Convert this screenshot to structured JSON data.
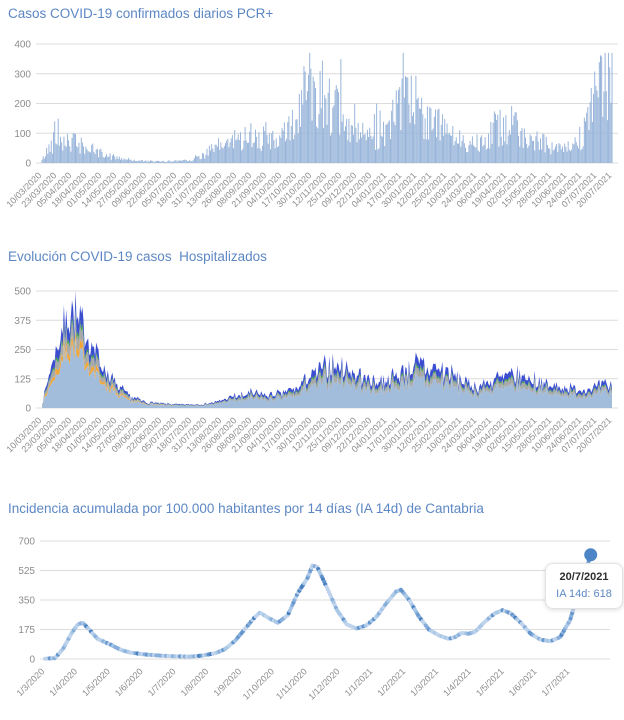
{
  "page": {
    "background": "#ffffff"
  },
  "styles": {
    "title_color": "#5c87c4",
    "axis_label_color": "#8c8c8c",
    "gridline_color": "#dcdcdc"
  },
  "tooltip": {
    "date": "20/7/2021",
    "label": "IA 14d: 618"
  },
  "chart_data": [
    {
      "type": "bar",
      "title": "Casos COVID-19 confirmados diarios PCR+",
      "xlabel": "",
      "ylabel": "",
      "ylim": [
        0,
        400
      ],
      "yticks": [
        0,
        100,
        200,
        300,
        400
      ],
      "grid": "horizontal",
      "legend": "none",
      "bar_color": "#94b2d8",
      "categories": [
        "10/03/2020",
        "23/03/2020",
        "05/04/2020",
        "18/04/2020",
        "01/05/2020",
        "14/05/2020",
        "27/05/2020",
        "09/06/2020",
        "22/06/2020",
        "05/07/2020",
        "18/07/2020",
        "31/07/2020",
        "13/08/2020",
        "26/08/2020",
        "08/09/2020",
        "21/09/2020",
        "04/10/2020",
        "17/10/2020",
        "30/10/2020",
        "12/11/2020",
        "25/11/2020",
        "09/12/2020",
        "22/12/2020",
        "04/01/2021",
        "17/01/2021",
        "30/01/2021",
        "12/02/2021",
        "25/02/2021",
        "10/03/2021",
        "24/03/2021",
        "06/04/2021",
        "19/04/2021",
        "02/05/2021",
        "15/05/2021",
        "28/05/2021",
        "10/06/2021",
        "24/06/2021",
        "07/07/2021",
        "20/07/2021"
      ],
      "values_at_ticks": [
        10,
        95,
        70,
        50,
        30,
        18,
        10,
        6,
        5,
        8,
        12,
        35,
        60,
        80,
        95,
        75,
        80,
        150,
        280,
        220,
        140,
        95,
        75,
        120,
        185,
        205,
        145,
        95,
        75,
        70,
        110,
        135,
        100,
        75,
        55,
        45,
        75,
        240,
        310
      ],
      "max_spike_value": 370,
      "days_per_tick": 13
    },
    {
      "type": "area",
      "title": "Evolución COVID-19 casos  Hospitalizados",
      "xlabel": "",
      "ylabel": "",
      "ylim": [
        0,
        500
      ],
      "yticks": [
        0,
        125,
        250,
        375,
        500
      ],
      "grid": "horizontal",
      "legend": "none",
      "stacked": true,
      "categories": [
        "10/03/2020",
        "23/03/2020",
        "05/04/2020",
        "18/04/2020",
        "01/05/2020",
        "14/05/2020",
        "27/05/2020",
        "09/06/2020",
        "22/06/2020",
        "05/07/2020",
        "18/07/2020",
        "31/07/2020",
        "13/08/2020",
        "26/08/2020",
        "08/09/2020",
        "21/09/2020",
        "04/10/2020",
        "17/10/2020",
        "30/10/2020",
        "12/11/2020",
        "25/11/2020",
        "09/12/2020",
        "22/12/2020",
        "04/01/2021",
        "17/01/2021",
        "30/01/2021",
        "12/02/2021",
        "25/02/2021",
        "10/03/2021",
        "24/03/2021",
        "06/04/2021",
        "19/04/2021",
        "02/05/2021",
        "15/05/2021",
        "28/05/2021",
        "10/06/2021",
        "24/06/2021",
        "07/07/2021",
        "20/07/2021"
      ],
      "series": [
        {
          "name": "light-blue-area",
          "color": "#a2bddc",
          "values_at_ticks": [
            9,
            168,
            237,
            180,
            108,
            54,
            27,
            15,
            11,
            9,
            9,
            11,
            21,
            33,
            39,
            36,
            39,
            54,
            90,
            120,
            111,
            90,
            72,
            78,
            99,
            117,
            111,
            96,
            72,
            57,
            72,
            90,
            87,
            72,
            60,
            54,
            51,
            57,
            63
          ]
        },
        {
          "name": "orange-area",
          "color": "#f2a637",
          "values_at_ticks": [
            1,
            22,
            32,
            24,
            14,
            7,
            3,
            1,
            1,
            0,
            0,
            0,
            0,
            0,
            0,
            0,
            0,
            0,
            0,
            0,
            0,
            0,
            0,
            0,
            0,
            0,
            0,
            0,
            0,
            0,
            0,
            0,
            0,
            0,
            0,
            0,
            0,
            0,
            0
          ]
        },
        {
          "name": "gray-area",
          "color": "#a9a9a9",
          "values_at_ticks": [
            2,
            39,
            55,
            42,
            25,
            13,
            6,
            4,
            3,
            2,
            2,
            3,
            5,
            8,
            9,
            8,
            9,
            13,
            21,
            28,
            26,
            21,
            17,
            18,
            23,
            27,
            26,
            22,
            17,
            13,
            17,
            21,
            20,
            17,
            14,
            13,
            12,
            13,
            15
          ]
        },
        {
          "name": "green-area",
          "color": "#3aa23a",
          "values_at_ticks": [
            1,
            11,
            16,
            12,
            7,
            4,
            2,
            1,
            1,
            1,
            1,
            1,
            1,
            2,
            3,
            2,
            3,
            4,
            6,
            8,
            7,
            6,
            5,
            5,
            7,
            8,
            7,
            6,
            5,
            4,
            5,
            6,
            6,
            5,
            4,
            4,
            3,
            4,
            4
          ]
        },
        {
          "name": "blue-area",
          "color": "#3b4ed0",
          "values_at_ticks": [
            2,
            45,
            63,
            48,
            29,
            14,
            7,
            4,
            3,
            3,
            3,
            3,
            6,
            9,
            10,
            10,
            10,
            14,
            24,
            32,
            30,
            24,
            19,
            21,
            26,
            31,
            30,
            26,
            19,
            15,
            19,
            24,
            23,
            19,
            16,
            14,
            14,
            15,
            17
          ]
        }
      ],
      "days_per_tick": 13
    },
    {
      "type": "line",
      "title": "Incidencia acumulada por 100.000 habitantes por 14 días (IA 14d) de Cantabria",
      "xlabel": "",
      "ylabel": "",
      "ylim": [
        0,
        700
      ],
      "yticks": [
        0,
        175,
        350,
        525,
        700
      ],
      "grid": "horizontal",
      "legend": "none",
      "marker_colors": [
        "#bfd4ec",
        "#a9c7e6",
        "#88afdb",
        "#6496cd",
        "#4a80c0"
      ],
      "categories": [
        "1/3/2020",
        "1/4/2020",
        "1/5/2020",
        "1/6/2020",
        "1/7/2020",
        "1/8/2020",
        "1/9/2020",
        "1/10/2020",
        "1/11/2020",
        "1/12/2020",
        "1/1/2021",
        "1/2/2021",
        "1/3/2021",
        "1/4/2021",
        "1/5/2021",
        "1/6/2021",
        "1/7/2021"
      ],
      "x_months": [
        0,
        0.3,
        0.55,
        0.8,
        1.0,
        1.15,
        1.3,
        1.6,
        2.0,
        2.3,
        2.6,
        3.0,
        3.5,
        4.0,
        4.4,
        4.8,
        5.2,
        5.5,
        5.8,
        6.1,
        6.4,
        6.55,
        6.8,
        7.1,
        7.4,
        7.7,
        8.0,
        8.15,
        8.3,
        8.6,
        8.9,
        9.2,
        9.5,
        9.8,
        10.1,
        10.4,
        10.7,
        10.85,
        11.1,
        11.4,
        11.7,
        12.0,
        12.3,
        12.5,
        12.7,
        12.9,
        13.1,
        13.4,
        13.7,
        13.95,
        14.2,
        14.5,
        14.8,
        15.1,
        15.4,
        15.7,
        16.0,
        16.3,
        16.5,
        16.63
      ],
      "values": [
        2,
        5,
        60,
        150,
        205,
        215,
        185,
        120,
        85,
        55,
        38,
        28,
        20,
        16,
        14,
        20,
        35,
        60,
        110,
        180,
        250,
        275,
        245,
        215,
        260,
        390,
        480,
        555,
        545,
        420,
        290,
        205,
        180,
        200,
        250,
        330,
        400,
        410,
        350,
        250,
        175,
        140,
        120,
        130,
        155,
        150,
        160,
        220,
        270,
        290,
        270,
        215,
        150,
        115,
        105,
        130,
        230,
        420,
        540,
        618
      ],
      "last_point": {
        "date": "20/7/2021",
        "value": 618,
        "color": "#4c86c6"
      }
    }
  ]
}
